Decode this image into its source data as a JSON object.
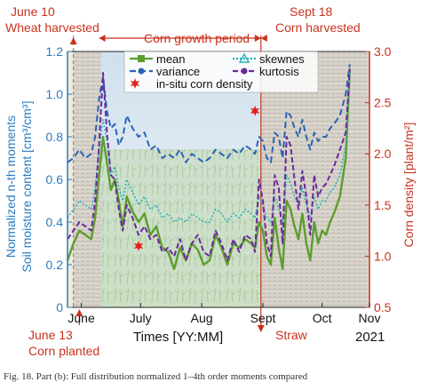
{
  "chart_data": {
    "type": "line",
    "xlabel": "Times [YY:MM]",
    "ylabel_left_line1": "Normalized n-th moments",
    "ylabel_left_line2": "Soil moisture content [cm³/cm³]",
    "ylabel_right": "Corn density [plant/m²]",
    "ylim_left": [
      0,
      1.2
    ],
    "ylim_right": [
      0.5,
      3.0
    ],
    "yticks_left": [
      "0",
      "0.2",
      "0.4",
      "0.6",
      "0.8",
      "1.0",
      "1.2"
    ],
    "yticks_right": [
      "0.5",
      "1.0",
      "1.5",
      "2.0",
      "2.5",
      "3.0"
    ],
    "xticks": [
      "June",
      "July",
      "Aug",
      "Sept",
      "Oct",
      "Nov"
    ],
    "year_label": "2021",
    "legend": {
      "mean": "mean",
      "variance": "variance",
      "skewnes": "skewnes",
      "kurtosis": "kurtosis",
      "density": "in-situ corn density"
    },
    "colors": {
      "mean": "#5c9e2e",
      "variance": "#2a63b8",
      "skewnes": "#2ab3b8",
      "kurtosis": "#6a2a9c",
      "density": "#e02020",
      "annotation": "#c8321e",
      "left_axis": "#2a7bc0"
    },
    "x_day": [
      0,
      3,
      6,
      9,
      12,
      14,
      16,
      18,
      20,
      22,
      24,
      26,
      28,
      30,
      33,
      36,
      39,
      42,
      45,
      48,
      51,
      54,
      57,
      60,
      63,
      66,
      69,
      72,
      75,
      78,
      81,
      84,
      87,
      90,
      93,
      95,
      97,
      99,
      101,
      103,
      105,
      107,
      109,
      111,
      113,
      115,
      117,
      119,
      121,
      123,
      125,
      127,
      129,
      131,
      133,
      135,
      138,
      141,
      143
    ],
    "series": [
      {
        "name": "mean",
        "values": [
          0.22,
          0.3,
          0.36,
          0.34,
          0.32,
          0.42,
          0.62,
          0.8,
          0.68,
          0.55,
          0.6,
          0.5,
          0.38,
          0.52,
          0.45,
          0.4,
          0.44,
          0.34,
          0.38,
          0.28,
          0.26,
          0.18,
          0.28,
          0.22,
          0.3,
          0.27,
          0.2,
          0.22,
          0.34,
          0.28,
          0.2,
          0.3,
          0.28,
          0.32,
          0.3,
          0.28,
          0.4,
          0.36,
          0.24,
          0.2,
          0.42,
          0.28,
          0.18,
          0.5,
          0.46,
          0.38,
          0.32,
          0.44,
          0.3,
          0.22,
          0.4,
          0.3,
          0.36,
          0.34,
          0.4,
          0.44,
          0.52,
          0.7,
          1.12
        ]
      },
      {
        "name": "variance",
        "values": [
          0.68,
          0.7,
          0.74,
          0.7,
          0.72,
          0.8,
          0.98,
          1.08,
          0.92,
          0.84,
          0.86,
          0.76,
          0.8,
          0.9,
          0.84,
          0.8,
          0.82,
          0.74,
          0.76,
          0.7,
          0.72,
          0.7,
          0.74,
          0.68,
          0.72,
          0.7,
          0.68,
          0.7,
          0.74,
          0.72,
          0.7,
          0.74,
          0.72,
          0.76,
          0.74,
          0.72,
          0.8,
          0.78,
          0.7,
          0.68,
          0.82,
          0.8,
          0.7,
          0.92,
          0.9,
          0.84,
          0.8,
          0.88,
          0.8,
          0.74,
          0.82,
          0.78,
          0.8,
          0.8,
          0.84,
          0.86,
          0.9,
          1.0,
          1.14
        ]
      },
      {
        "name": "skewnes",
        "values": [
          0.42,
          0.46,
          0.5,
          0.48,
          0.46,
          0.56,
          0.74,
          0.88,
          0.78,
          0.62,
          0.66,
          0.56,
          0.5,
          0.6,
          0.54,
          0.48,
          0.52,
          0.46,
          0.48,
          0.42,
          0.44,
          0.4,
          0.42,
          0.4,
          0.44,
          0.42,
          0.4,
          0.4,
          0.46,
          0.44,
          0.4,
          0.44,
          0.42,
          0.46,
          0.44,
          0.42,
          0.52,
          0.48,
          0.42,
          0.4,
          0.52,
          0.46,
          0.4,
          0.62,
          0.58,
          0.52,
          0.48,
          0.56,
          0.48,
          0.42,
          0.52,
          0.46,
          0.5,
          0.5,
          0.54,
          0.56,
          0.62,
          0.76,
          1.1
        ]
      },
      {
        "name": "kurtosis",
        "values": [
          0.32,
          0.36,
          0.4,
          0.38,
          0.36,
          0.5,
          0.76,
          1.1,
          0.82,
          0.62,
          0.6,
          0.46,
          0.36,
          0.48,
          0.42,
          0.34,
          0.38,
          0.32,
          0.34,
          0.26,
          0.28,
          0.24,
          0.32,
          0.22,
          0.3,
          0.34,
          0.26,
          0.24,
          0.36,
          0.3,
          0.22,
          0.32,
          0.26,
          0.34,
          0.32,
          0.26,
          0.6,
          0.5,
          0.3,
          0.24,
          0.62,
          0.56,
          0.3,
          0.8,
          0.76,
          0.6,
          0.46,
          0.64,
          0.52,
          0.34,
          0.62,
          0.52,
          0.56,
          0.58,
          0.62,
          0.66,
          0.74,
          0.82,
          1.12
        ]
      }
    ],
    "density_points": [
      {
        "x": 36,
        "y": 1.1
      },
      {
        "x": 95,
        "y": 2.42
      }
    ]
  },
  "annotations": {
    "june10_date": "June 10",
    "june10_event": "Wheat harvested",
    "sept18_date": "Sept 18",
    "sept18_event": "Corn harvested",
    "corn_period": "Corn growth period",
    "june13_date": "June 13",
    "june13_event": "Corn planted",
    "straw": "Straw"
  },
  "caption": "Fig. 18.   Part (b): Full distribution normalized 1–4th order moments compared"
}
